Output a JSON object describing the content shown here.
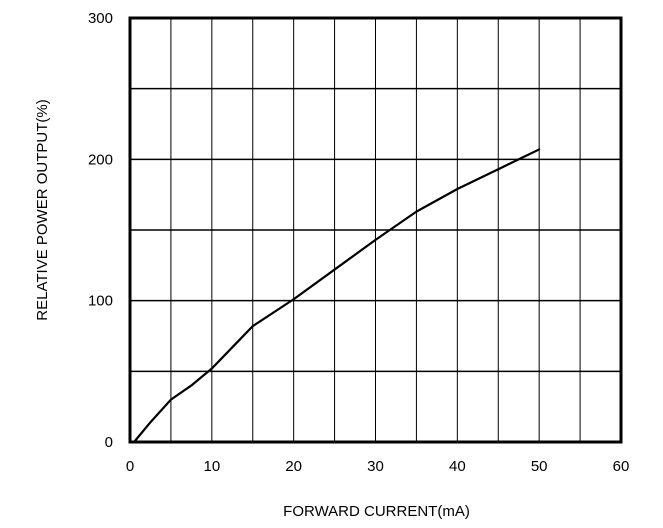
{
  "chart_data": {
    "type": "line",
    "title": "",
    "xlabel": "FORWARD CURRENT(mA)",
    "ylabel": "RELATIVE POWER OUTPUT(%)",
    "xlim": [
      0,
      60
    ],
    "ylim": [
      0,
      300
    ],
    "x_ticks": [
      0,
      10,
      20,
      30,
      40,
      50,
      60
    ],
    "y_ticks": [
      0,
      100,
      200,
      300
    ],
    "x_ticks_labels": [
      "0",
      "10",
      "20",
      "30",
      "40",
      "50",
      "60"
    ],
    "y_ticks_labels": [
      "0",
      "100",
      "200",
      "300"
    ],
    "x_grid_step": 5,
    "y_grid_step": 50,
    "grid": true,
    "line_color": "#000000",
    "series": [
      {
        "x": [
          0.5,
          2.5,
          5,
          7.5,
          10,
          12.5,
          15,
          20,
          25,
          30,
          35,
          40,
          45,
          50
        ],
        "y": [
          0,
          14,
          30,
          40,
          52,
          67,
          82,
          101,
          122,
          143,
          163,
          179,
          193,
          207
        ]
      }
    ]
  }
}
